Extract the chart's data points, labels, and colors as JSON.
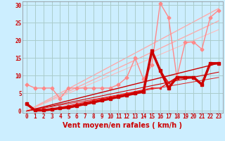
{
  "background_color": "#cceeff",
  "grid_color": "#aacccc",
  "xlabel": "Vent moyen/en rafales ( km/h )",
  "xlabel_color": "#cc0000",
  "xlabel_fontsize": 7,
  "tick_color": "#cc0000",
  "tick_fontsize": 5.5,
  "xlim": [
    -0.5,
    23.5
  ],
  "ylim": [
    -0.5,
    31
  ],
  "yticks": [
    0,
    5,
    10,
    15,
    20,
    25,
    30
  ],
  "xticks": [
    0,
    1,
    2,
    3,
    4,
    5,
    6,
    7,
    8,
    9,
    10,
    11,
    12,
    13,
    14,
    15,
    16,
    17,
    18,
    19,
    20,
    21,
    22,
    23
  ],
  "series": [
    {
      "x": [
        0,
        23
      ],
      "y": [
        0,
        29.0
      ],
      "color": "#ffaaaa",
      "linewidth": 1.0,
      "marker": null,
      "zorder": 1
    },
    {
      "x": [
        0,
        23
      ],
      "y": [
        0,
        25.5
      ],
      "color": "#ffaaaa",
      "linewidth": 1.0,
      "marker": null,
      "zorder": 1
    },
    {
      "x": [
        0,
        23
      ],
      "y": [
        0,
        23.0
      ],
      "color": "#ffbbbb",
      "linewidth": 0.8,
      "marker": null,
      "zorder": 1
    },
    {
      "x": [
        0,
        1,
        2,
        3,
        4,
        5,
        6,
        7,
        8,
        9,
        10,
        11,
        12,
        13,
        14,
        15,
        16,
        17,
        18,
        19,
        20,
        21,
        22,
        23
      ],
      "y": [
        7.5,
        6.5,
        6.5,
        6.5,
        3.5,
        6.5,
        6.5,
        6.5,
        6.5,
        6.5,
        6.5,
        7.5,
        9.5,
        15.0,
        9.0,
        13.0,
        30.5,
        26.5,
        9.5,
        19.5,
        19.5,
        17.5,
        26.5,
        28.5
      ],
      "color": "#ff8888",
      "linewidth": 1.0,
      "marker": "D",
      "markersize": 2.5,
      "zorder": 2
    },
    {
      "x": [
        0,
        1,
        2,
        3,
        4,
        5,
        6,
        7,
        8,
        9,
        10,
        11,
        12,
        13,
        14,
        15,
        16,
        17,
        18,
        19,
        20,
        21,
        22,
        23
      ],
      "y": [
        2.0,
        0.2,
        0.2,
        0.5,
        0.8,
        1.0,
        1.5,
        2.0,
        2.5,
        3.0,
        3.5,
        4.0,
        4.5,
        5.0,
        5.5,
        17.0,
        11.5,
        6.5,
        9.5,
        9.5,
        9.5,
        7.5,
        13.5,
        13.5
      ],
      "color": "#cc0000",
      "linewidth": 2.5,
      "marker": "s",
      "markersize": 2.5,
      "zorder": 6
    },
    {
      "x": [
        0,
        1,
        2,
        3,
        4,
        5,
        6,
        7,
        8,
        9,
        10,
        11,
        12,
        13,
        14,
        15,
        16,
        17,
        18,
        19,
        20,
        21,
        22,
        23
      ],
      "y": [
        2.0,
        0.2,
        0.2,
        0.5,
        0.8,
        1.0,
        1.5,
        2.0,
        2.5,
        3.0,
        3.5,
        4.0,
        4.5,
        5.0,
        5.5,
        17.0,
        11.5,
        8.0,
        9.5,
        9.5,
        9.5,
        7.5,
        13.5,
        13.5
      ],
      "color": "#dd1111",
      "linewidth": 1.2,
      "marker": "s",
      "markersize": 2.0,
      "zorder": 5
    },
    {
      "x": [
        0,
        1,
        2,
        3,
        4,
        5,
        6,
        7,
        8,
        9,
        10,
        11,
        12,
        13,
        14,
        15,
        16,
        17,
        18,
        19,
        20,
        21,
        22,
        23
      ],
      "y": [
        2.0,
        0.2,
        0.2,
        0.5,
        1.0,
        1.5,
        2.0,
        2.5,
        3.0,
        3.5,
        4.0,
        4.5,
        5.0,
        5.5,
        6.0,
        6.5,
        6.5,
        8.0,
        9.5,
        9.5,
        9.5,
        7.5,
        13.5,
        13.5
      ],
      "color": "#ee2222",
      "linewidth": 1.0,
      "marker": "s",
      "markersize": 1.8,
      "zorder": 4
    },
    {
      "x": [
        0,
        23
      ],
      "y": [
        0,
        13.5
      ],
      "color": "#cc0000",
      "linewidth": 1.0,
      "marker": null,
      "zorder": 3
    },
    {
      "x": [
        0,
        23
      ],
      "y": [
        0,
        11.0
      ],
      "color": "#cc0000",
      "linewidth": 0.8,
      "marker": null,
      "zorder": 3
    },
    {
      "x": [
        0,
        23
      ],
      "y": [
        0,
        9.5
      ],
      "color": "#dd2222",
      "linewidth": 0.7,
      "marker": null,
      "zorder": 3
    }
  ]
}
